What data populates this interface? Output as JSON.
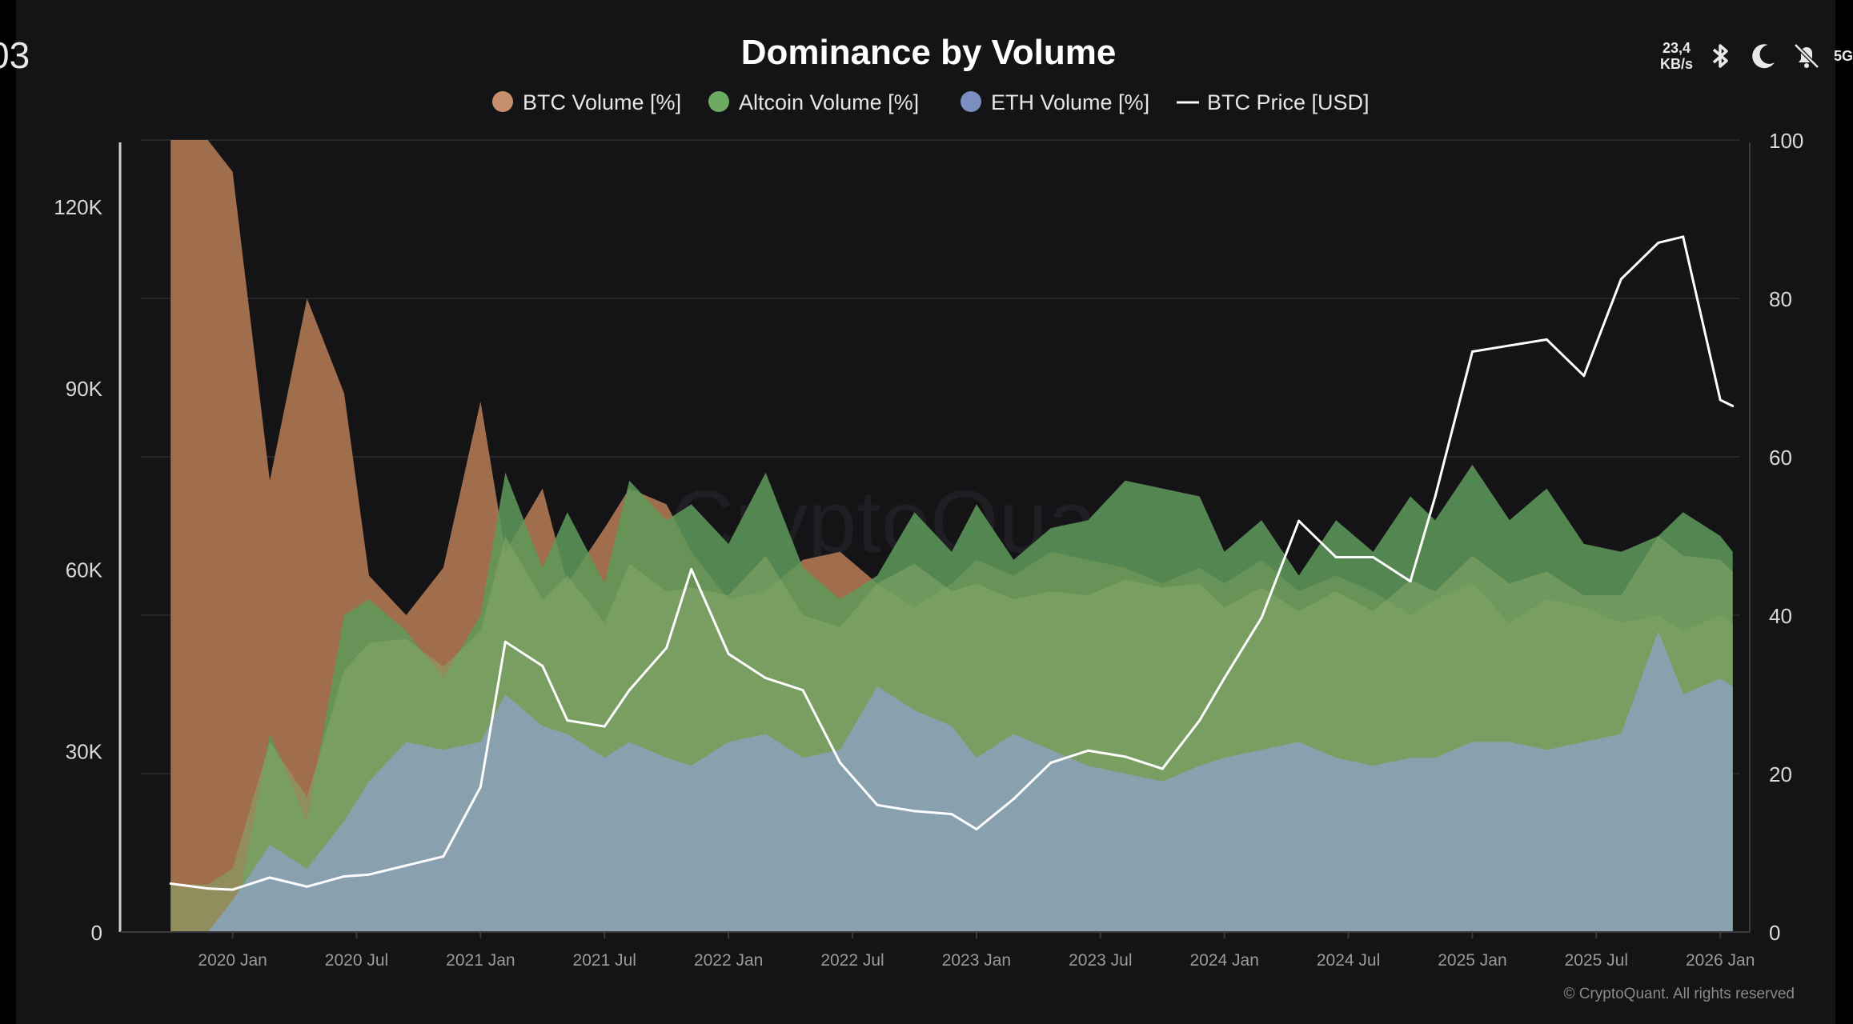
{
  "statusbar": {
    "left_text": "03",
    "net_speed_value": "23,4",
    "net_speed_unit": "KB/s",
    "network_label": "5G",
    "icons": [
      "bluetooth-icon",
      "moon-icon",
      "bell-off-icon"
    ]
  },
  "colors": {
    "background": "#141416",
    "btc_volume": "#a8734f",
    "altcoin_volume": "#5e9a5a",
    "eth_volume": "#6f86b8",
    "btc_price": "#ffffff",
    "axis_text": "#d9d9d9",
    "mix_green_eth": "#86a86a",
    "light_blue": "#8aa1b3"
  },
  "chart_data": {
    "type": "area",
    "title": "Dominance by Volume",
    "watermark": "CryptoQuant",
    "credit": "© CryptoQuant. All rights reserved",
    "legend_position": "top-center",
    "grid": true,
    "legend": [
      {
        "name": "BTC Volume [%]",
        "color": "#c5906b",
        "marker": "dot"
      },
      {
        "name": "Altcoin Volume [%]",
        "color": "#6daa62",
        "marker": "dot"
      },
      {
        "name": "ETH Volume [%]",
        "color": "#7a8fc0",
        "marker": "dot"
      },
      {
        "name": "BTC Price [USD]",
        "color": "#ffffff",
        "marker": "line"
      }
    ],
    "x_ticks": [
      "2020 Jan",
      "2020 Jul",
      "2021 Jan",
      "2021 Jul",
      "2022 Jan",
      "2022 Jul",
      "2023 Jan",
      "2023 Jul",
      "2024 Jan",
      "2024 Jul",
      "2025 Jan",
      "2025 Jul",
      "2026 Jan"
    ],
    "left_axis": {
      "ticks": [
        "0",
        "30K",
        "60K",
        "90K",
        "120K"
      ],
      "values": [
        0,
        30000,
        60000,
        90000,
        120000
      ],
      "ylim": [
        0,
        131000
      ]
    },
    "right_axis": {
      "ticks": [
        "0",
        "20",
        "40",
        "60",
        "80",
        "100"
      ],
      "values": [
        0,
        20,
        40,
        60,
        80,
        100
      ],
      "ylim": [
        0,
        100
      ]
    },
    "x": [
      2019.75,
      2019.9,
      2020.0,
      2020.15,
      2020.3,
      2020.45,
      2020.55,
      2020.7,
      2020.85,
      2021.0,
      2021.1,
      2021.25,
      2021.35,
      2021.5,
      2021.6,
      2021.75,
      2021.85,
      2022.0,
      2022.15,
      2022.3,
      2022.45,
      2022.6,
      2022.75,
      2022.9,
      2023.0,
      2023.15,
      2023.3,
      2023.45,
      2023.6,
      2023.75,
      2023.9,
      2024.0,
      2024.15,
      2024.3,
      2024.45,
      2024.6,
      2024.75,
      2024.85,
      2025.0,
      2025.15,
      2025.3,
      2025.45,
      2025.6,
      2025.75,
      2025.85,
      2026.0,
      2026.05
    ],
    "series": [
      {
        "name": "BTC Volume [%]",
        "axis": "right",
        "values": [
          100,
          100,
          96,
          57,
          80,
          68,
          45,
          40,
          46,
          67,
          48,
          56,
          44,
          51,
          56,
          54,
          48,
          42,
          43,
          47,
          48,
          44,
          41,
          44,
          47,
          45,
          48,
          47,
          46,
          44,
          46,
          44,
          47,
          43,
          45,
          43,
          40,
          42,
          44,
          39,
          42,
          41,
          39,
          40,
          38,
          40,
          39
        ]
      },
      {
        "name": "Altcoin Volume [%]",
        "axis": "right",
        "values": [
          0,
          0,
          0,
          25,
          14,
          40,
          42,
          38,
          32,
          40,
          58,
          46,
          53,
          44,
          57,
          52,
          54,
          49,
          58,
          46,
          42,
          45,
          53,
          48,
          54,
          47,
          51,
          52,
          57,
          56,
          55,
          48,
          52,
          45,
          52,
          48,
          55,
          52,
          59,
          52,
          56,
          49,
          48,
          50,
          53,
          50,
          48
        ]
      },
      {
        "name": "ETH Volume [%]",
        "axis": "right",
        "values": [
          0,
          0,
          4,
          11,
          8,
          14,
          19,
          24,
          23,
          24,
          30,
          26,
          25,
          22,
          24,
          22,
          21,
          24,
          25,
          22,
          23,
          31,
          28,
          26,
          22,
          25,
          23,
          21,
          20,
          19,
          21,
          22,
          23,
          24,
          22,
          21,
          22,
          22,
          24,
          24,
          23,
          24,
          25,
          38,
          30,
          32,
          31
        ]
      },
      {
        "name": "BTC Price [USD]",
        "axis": "left",
        "values": [
          8000,
          7200,
          7000,
          9000,
          7500,
          9200,
          9500,
          11000,
          12500,
          24000,
          48000,
          44000,
          35000,
          34000,
          40000,
          47000,
          60000,
          46000,
          42000,
          40000,
          28000,
          21000,
          20000,
          19500,
          17000,
          22000,
          28000,
          30000,
          29000,
          27000,
          35000,
          42000,
          52000,
          68000,
          62000,
          62000,
          58000,
          72000,
          96000,
          97000,
          98000,
          92000,
          108000,
          114000,
          115000,
          88000,
          87000
        ]
      }
    ]
  }
}
